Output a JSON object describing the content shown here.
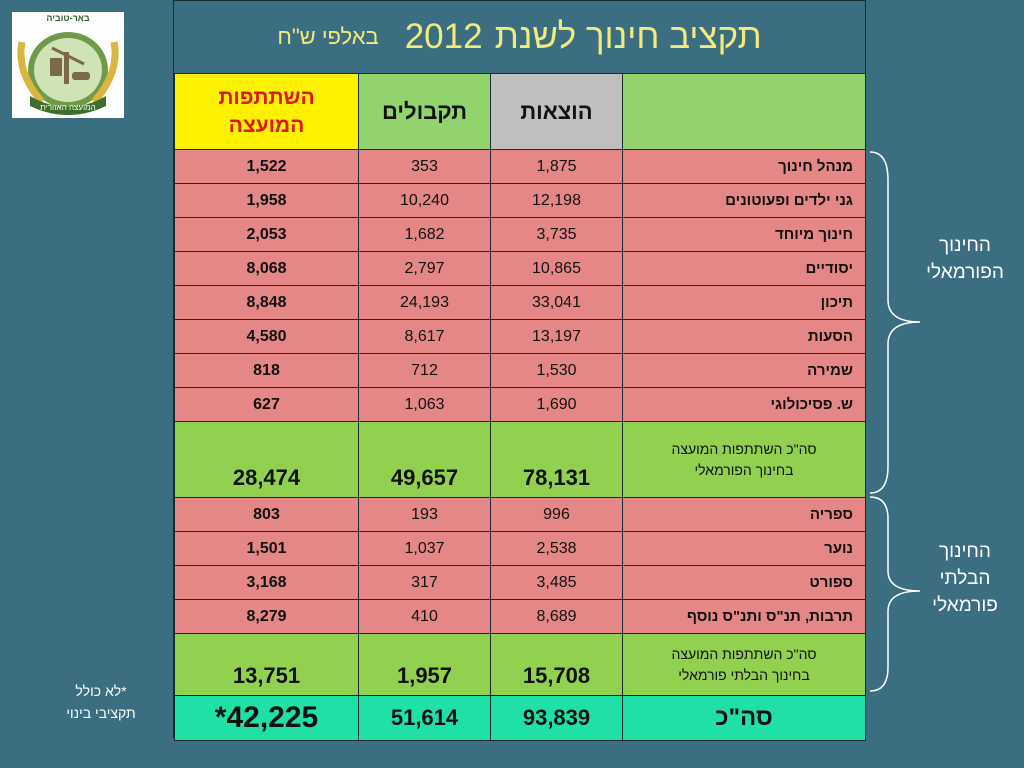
{
  "logo": {
    "text": "באר-טוביה",
    "caption": "המועצה האזורית"
  },
  "title": {
    "main": "תקציב חינוך לשנת",
    "year": "2012",
    "sub": "באלפי ש\"ח"
  },
  "headers": {
    "label": "",
    "expenses": "הוצאות",
    "income": "תקבולים",
    "council_line1": "השתתפות",
    "council_line2": "המועצה"
  },
  "formal_rows": [
    {
      "label": "מנהל חינוך",
      "expenses": "1,875",
      "income": "353",
      "council": "1,522"
    },
    {
      "label": "גני ילדים ופעוטונים",
      "expenses": "12,198",
      "income": "10,240",
      "council": "1,958"
    },
    {
      "label": "חינוך מיוחד",
      "expenses": "3,735",
      "income": "1,682",
      "council": "2,053"
    },
    {
      "label": "יסודיים",
      "expenses": "10,865",
      "income": "2,797",
      "council": "8,068"
    },
    {
      "label": "תיכון",
      "expenses": "33,041",
      "income": "24,193",
      "council": "8,848"
    },
    {
      "label": "הסעות",
      "expenses": "13,197",
      "income": "8,617",
      "council": "4,580"
    },
    {
      "label": "שמירה",
      "expenses": "1,530",
      "income": "712",
      "council": "818"
    },
    {
      "label": "ש. פסיכולוגי",
      "expenses": "1,690",
      "income": "1,063",
      "council": "627"
    }
  ],
  "formal_total": {
    "label_line1": "סה\"כ השתתפות המועצה",
    "label_line2": "בחינוך הפורמאלי",
    "expenses": "78,131",
    "income": "49,657",
    "council": "28,474"
  },
  "informal_rows": [
    {
      "label": "ספריה",
      "expenses": "996",
      "income": "193",
      "council": "803"
    },
    {
      "label": "נוער",
      "expenses": "2,538",
      "income": "1,037",
      "council": "1,501"
    },
    {
      "label": "ספורט",
      "expenses": "3,485",
      "income": "317",
      "council": "3,168"
    },
    {
      "label": "תרבות, תנ\"ס ותנ\"ס נוסף",
      "expenses": "8,689",
      "income": "410",
      "council": "8,279"
    }
  ],
  "informal_total": {
    "label_line1": "סה\"כ השתתפות המועצה",
    "label_line2": "בחינוך הבלתי פורמאלי",
    "expenses": "15,708",
    "income": "1,957",
    "council": "13,751"
  },
  "grand_total": {
    "label": "סה\"כ",
    "expenses": "93,839",
    "income": "51,614",
    "council": "42,225*"
  },
  "side_labels": {
    "formal_line1": "החינוך",
    "formal_line2": "הפורמאלי",
    "informal_line1": "החינוך",
    "informal_line2": "הבלתי",
    "informal_line3": "פורמאלי"
  },
  "note": {
    "line1": "*לא כולל",
    "line2": "תקציבי בינוי"
  },
  "colors": {
    "background": "#3b6e80",
    "title": "#f2ea7a",
    "row": "#e48786",
    "subtotal": "#92d050",
    "total": "#1fe0a6",
    "council_header": "#fff200"
  }
}
